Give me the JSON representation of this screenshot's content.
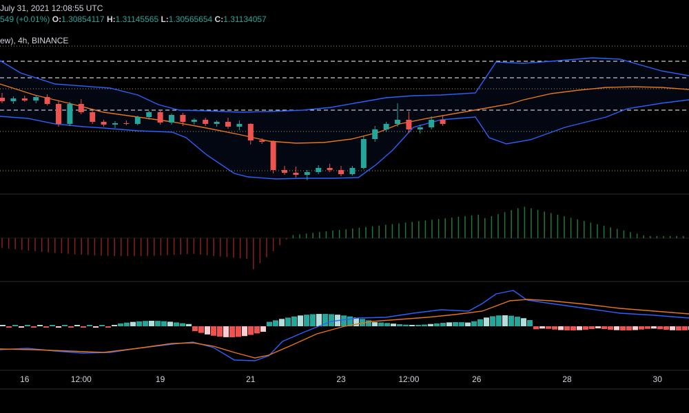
{
  "header": {
    "date": "July 31, 2021 12:08:55 UTC",
    "change": "549 (+0.01%)",
    "open_label": "O:",
    "open": "1.30854117",
    "high_label": "H:",
    "high": "1.31145565",
    "low_label": "L:",
    "low": "1.30565654",
    "close_label": "C:",
    "close": "1.31134057",
    "source": "ew), 4h, BINANCE"
  },
  "colors": {
    "background": "#000000",
    "up": "#26a69a",
    "down": "#ef5350",
    "band": "#2962ff",
    "ma": "#e8751a",
    "hist_up": "#1f7a3a",
    "hist_down": "#8b2020",
    "macd_up_strong": "#26a69a",
    "macd_up_weak": "#b2dfdb",
    "macd_down_strong": "#ef5350",
    "macd_down_weak": "#ffcdd2"
  },
  "chart_data": {
    "type": "candlestick",
    "x_ticks": [
      "16",
      "12:00",
      "19",
      "21",
      "23",
      "12:00",
      "26",
      "28",
      "30"
    ],
    "x_tick_index": [
      2,
      7,
      14,
      22,
      30,
      36,
      42,
      50,
      58
    ],
    "price": {
      "ylim": [
        1.2,
        1.42
      ],
      "candles": [
        {
          "o": 1.338,
          "h": 1.345,
          "l": 1.33,
          "c": 1.333
        },
        {
          "o": 1.333,
          "h": 1.34,
          "l": 1.329,
          "c": 1.337
        },
        {
          "o": 1.337,
          "h": 1.341,
          "l": 1.332,
          "c": 1.334
        },
        {
          "o": 1.334,
          "h": 1.342,
          "l": 1.33,
          "c": 1.339
        },
        {
          "o": 1.339,
          "h": 1.343,
          "l": 1.327,
          "c": 1.329
        },
        {
          "o": 1.329,
          "h": 1.333,
          "l": 1.296,
          "c": 1.3
        },
        {
          "o": 1.3,
          "h": 1.332,
          "l": 1.297,
          "c": 1.329
        },
        {
          "o": 1.329,
          "h": 1.336,
          "l": 1.314,
          "c": 1.317
        },
        {
          "o": 1.317,
          "h": 1.319,
          "l": 1.3,
          "c": 1.303
        },
        {
          "o": 1.303,
          "h": 1.306,
          "l": 1.296,
          "c": 1.299
        },
        {
          "o": 1.299,
          "h": 1.304,
          "l": 1.294,
          "c": 1.301
        },
        {
          "o": 1.301,
          "h": 1.305,
          "l": 1.298,
          "c": 1.3
        },
        {
          "o": 1.3,
          "h": 1.312,
          "l": 1.298,
          "c": 1.31
        },
        {
          "o": 1.31,
          "h": 1.319,
          "l": 1.306,
          "c": 1.317
        },
        {
          "o": 1.317,
          "h": 1.321,
          "l": 1.299,
          "c": 1.302
        },
        {
          "o": 1.302,
          "h": 1.315,
          "l": 1.299,
          "c": 1.313
        },
        {
          "o": 1.313,
          "h": 1.316,
          "l": 1.297,
          "c": 1.303
        },
        {
          "o": 1.303,
          "h": 1.308,
          "l": 1.299,
          "c": 1.306
        },
        {
          "o": 1.306,
          "h": 1.309,
          "l": 1.297,
          "c": 1.3
        },
        {
          "o": 1.3,
          "h": 1.305,
          "l": 1.296,
          "c": 1.303
        },
        {
          "o": 1.303,
          "h": 1.309,
          "l": 1.293,
          "c": 1.296
        },
        {
          "o": 1.296,
          "h": 1.305,
          "l": 1.291,
          "c": 1.3
        },
        {
          "o": 1.3,
          "h": 1.301,
          "l": 1.27,
          "c": 1.276
        },
        {
          "o": 1.276,
          "h": 1.279,
          "l": 1.271,
          "c": 1.274
        },
        {
          "o": 1.274,
          "h": 1.276,
          "l": 1.228,
          "c": 1.233
        },
        {
          "o": 1.233,
          "h": 1.239,
          "l": 1.226,
          "c": 1.229
        },
        {
          "o": 1.229,
          "h": 1.238,
          "l": 1.222,
          "c": 1.226
        },
        {
          "o": 1.226,
          "h": 1.233,
          "l": 1.218,
          "c": 1.23
        },
        {
          "o": 1.23,
          "h": 1.24,
          "l": 1.227,
          "c": 1.236
        },
        {
          "o": 1.236,
          "h": 1.242,
          "l": 1.23,
          "c": 1.233
        },
        {
          "o": 1.233,
          "h": 1.239,
          "l": 1.224,
          "c": 1.227
        },
        {
          "o": 1.227,
          "h": 1.239,
          "l": 1.225,
          "c": 1.236
        },
        {
          "o": 1.236,
          "h": 1.282,
          "l": 1.234,
          "c": 1.278
        },
        {
          "o": 1.278,
          "h": 1.297,
          "l": 1.274,
          "c": 1.292
        },
        {
          "o": 1.292,
          "h": 1.303,
          "l": 1.288,
          "c": 1.3
        },
        {
          "o": 1.3,
          "h": 1.33,
          "l": 1.296,
          "c": 1.306
        },
        {
          "o": 1.306,
          "h": 1.318,
          "l": 1.287,
          "c": 1.292
        },
        {
          "o": 1.292,
          "h": 1.299,
          "l": 1.286,
          "c": 1.295
        },
        {
          "o": 1.295,
          "h": 1.311,
          "l": 1.292,
          "c": 1.306
        },
        {
          "o": 1.306,
          "h": 1.313,
          "l": 1.297,
          "c": 1.3
        }
      ]
    }
  }
}
